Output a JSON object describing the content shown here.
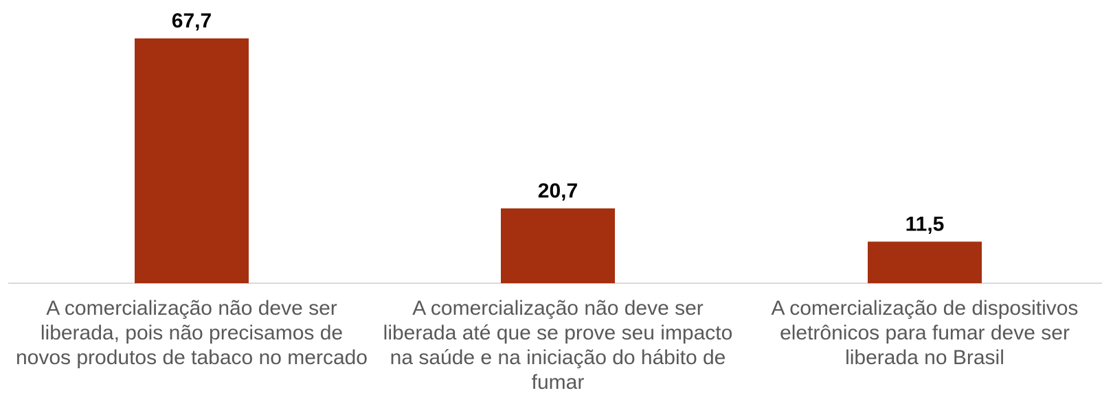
{
  "chart_data": {
    "type": "bar",
    "categories": [
      "A comercialização não deve ser liberada, pois não precisamos de novos produtos de tabaco no mercado",
      "A comercialização não deve ser liberada até que se prove seu impacto na saúde e na iniciação do hábito de fumar",
      "A comercialização de dispositivos eletrônicos para fumar deve ser liberada no Brasil"
    ],
    "values": [
      67.7,
      20.7,
      11.5
    ],
    "value_labels": [
      "67,7",
      "20,7",
      "11,5"
    ],
    "title": "",
    "xlabel": "",
    "ylabel": "",
    "ylim": [
      0,
      67.7
    ],
    "grid": false,
    "legend": "none",
    "colors": {
      "bar": "#A5300F",
      "axis": "#D9D9D9",
      "value_text": "#000000",
      "category_text": "#595959"
    }
  }
}
